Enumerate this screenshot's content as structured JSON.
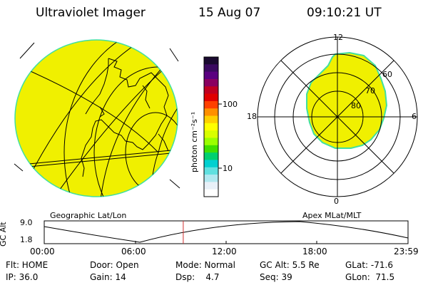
{
  "header": {
    "instrument": "Ultraviolet Imager",
    "date": "15 Aug 07",
    "time": "09:10:21 UT"
  },
  "colorbar": {
    "unit_label": "photon cm⁻²s⁻¹",
    "ticks": [
      "100",
      "10"
    ],
    "colors": [
      "#1a0a30",
      "#3a0a60",
      "#5a0080",
      "#8a0060",
      "#c00020",
      "#e00000",
      "#ff4000",
      "#ff9000",
      "#ffd000",
      "#ffff00",
      "#d8ff00",
      "#9aff00",
      "#40e000",
      "#00d070",
      "#00d0d0",
      "#60e0e0",
      "#b0e8f0",
      "#e8f0f8",
      "#ffffff"
    ]
  },
  "panels": {
    "geographic_label": "Geographic Lat/Lon",
    "apex_label": "Apex MLat/MLT",
    "fill_color": "#f0f000",
    "edge_color": "#40e0a0"
  },
  "polar": {
    "mlt_labels": {
      "top": "12",
      "left": "18",
      "right": "6",
      "bottom": "0"
    },
    "lat_labels": [
      "60",
      "70",
      "80"
    ]
  },
  "altitude_plot": {
    "y_axis_label": "GC Alt",
    "y_ticks": [
      "9.0",
      "1.8"
    ],
    "x_ticks": [
      "00:00",
      "06:00",
      "12:00",
      "18:00",
      "23:59"
    ],
    "current_time_hours": 9.17,
    "marker_color": "#d03030"
  },
  "status": {
    "row1": [
      {
        "key": "Flt: HOME"
      },
      {
        "key": "Door: Open"
      },
      {
        "key": "Mode: Normal"
      },
      {
        "key": "GC Alt: 5.5 Re"
      },
      {
        "key": "GLat: -71.6"
      }
    ],
    "row2": [
      {
        "key": "IP: 36.0"
      },
      {
        "key": "Gain: 14"
      },
      {
        "key": "Dsp:    4.7"
      },
      {
        "key": "Seq: 39"
      },
      {
        "key": "GLon:  71.5"
      }
    ]
  }
}
